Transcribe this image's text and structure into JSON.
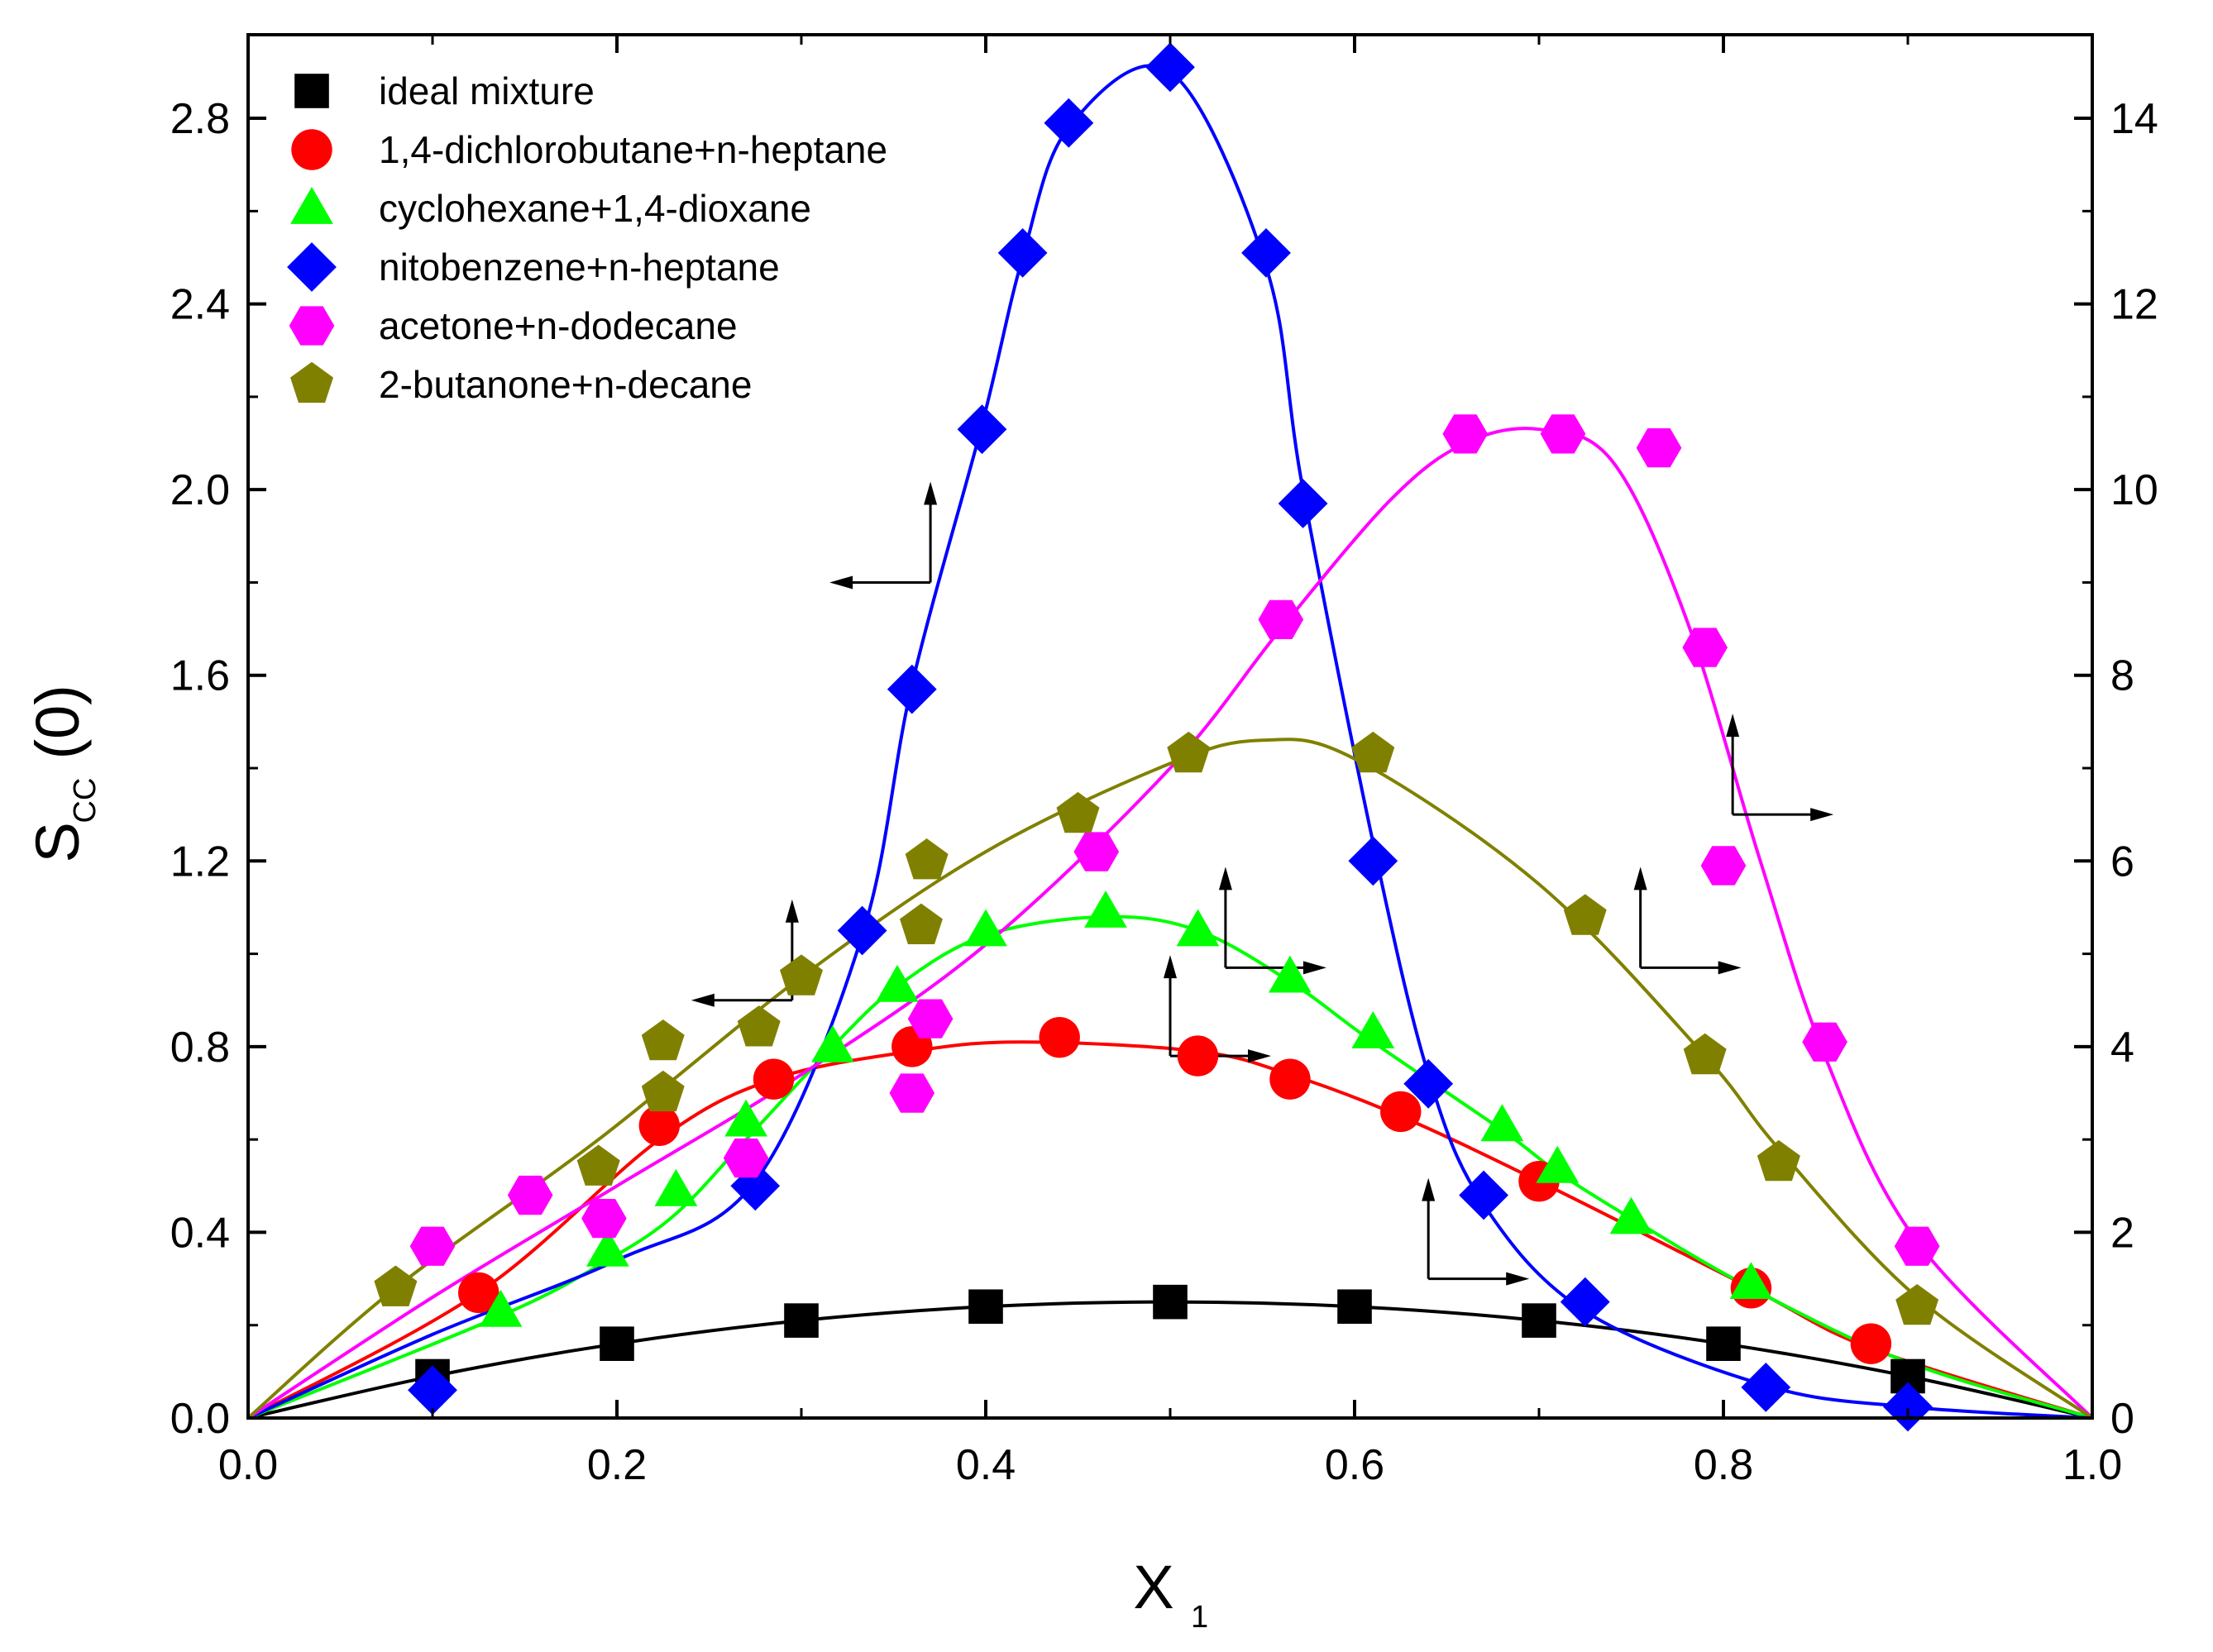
{
  "chart_data": {
    "type": "scatter",
    "title": "",
    "xlabel": "X",
    "xlabel_subscript": "1",
    "ylabel": "S",
    "ylabel_subscript": "CC",
    "ylabel_suffix": "(0)",
    "xlim": [
      0.0,
      1.0
    ],
    "ylim_left": [
      0.0,
      2.98
    ],
    "ylim_right": [
      0,
      14.9
    ],
    "x_ticks": [
      "0.0",
      "0.2",
      "0.4",
      "0.6",
      "0.8",
      "1.0"
    ],
    "y_ticks_left": [
      "0.0",
      "0.4",
      "0.8",
      "1.2",
      "1.6",
      "2.0",
      "2.4",
      "2.8"
    ],
    "y_ticks_right": [
      "0",
      "2",
      "4",
      "6",
      "8",
      "10",
      "12",
      "14"
    ],
    "legend_position": "top-left",
    "series": [
      {
        "name": "ideal mixture",
        "marker": "square",
        "color": "#000000",
        "axis": "left",
        "x": [
          0.1,
          0.2,
          0.3,
          0.4,
          0.5,
          0.6,
          0.7,
          0.8,
          0.9
        ],
        "y": [
          0.09,
          0.16,
          0.21,
          0.24,
          0.25,
          0.24,
          0.21,
          0.16,
          0.09
        ],
        "fit_x": [
          0,
          0.1,
          0.2,
          0.3,
          0.4,
          0.5,
          0.6,
          0.7,
          0.8,
          0.9,
          1.0
        ],
        "fit_y": [
          0,
          0.09,
          0.16,
          0.21,
          0.24,
          0.25,
          0.24,
          0.21,
          0.16,
          0.09,
          0
        ]
      },
      {
        "name": "1,4-dichlorobutane+n-heptane",
        "marker": "circle",
        "color": "#ff0000",
        "axis": "left",
        "x": [
          0.125,
          0.223,
          0.285,
          0.36,
          0.44,
          0.515,
          0.565,
          0.625,
          0.7,
          0.815,
          0.88
        ],
        "y": [
          0.27,
          0.63,
          0.73,
          0.8,
          0.82,
          0.78,
          0.73,
          0.66,
          0.51,
          0.28,
          0.16
        ],
        "fit_x": [
          0,
          0.125,
          0.223,
          0.285,
          0.36,
          0.42,
          0.515,
          0.565,
          0.625,
          0.7,
          0.815,
          0.88,
          1.0
        ],
        "fit_y": [
          0,
          0.27,
          0.6,
          0.73,
          0.79,
          0.81,
          0.79,
          0.74,
          0.65,
          0.51,
          0.28,
          0.15,
          0
        ]
      },
      {
        "name": "cyclohexane+1,4-dioxane",
        "marker": "triangle",
        "color": "#00ff00",
        "axis": "left",
        "x": [
          0.137,
          0.195,
          0.232,
          0.27,
          0.317,
          0.352,
          0.4,
          0.465,
          0.515,
          0.565,
          0.61,
          0.68,
          0.71,
          0.75,
          0.815
        ],
        "y": [
          0.23,
          0.36,
          0.49,
          0.64,
          0.8,
          0.93,
          1.05,
          1.09,
          1.05,
          0.95,
          0.83,
          0.63,
          0.54,
          0.43,
          0.29
        ],
        "fit_x": [
          0,
          0.137,
          0.195,
          0.232,
          0.27,
          0.317,
          0.352,
          0.4,
          0.465,
          0.515,
          0.565,
          0.61,
          0.68,
          0.71,
          0.75,
          0.815,
          0.9,
          1.0
        ],
        "fit_y": [
          0,
          0.22,
          0.34,
          0.44,
          0.6,
          0.8,
          0.93,
          1.04,
          1.08,
          1.05,
          0.94,
          0.81,
          0.62,
          0.53,
          0.43,
          0.28,
          0.12,
          0
        ]
      },
      {
        "name": "nitobenzene+n-heptane",
        "marker": "diamond",
        "color": "#0000ff",
        "axis": "right",
        "x": [
          0.1,
          0.275,
          0.333,
          0.36,
          0.398,
          0.42,
          0.445,
          0.5,
          0.552,
          0.572,
          0.61,
          0.64,
          0.67,
          0.725,
          0.823,
          0.9
        ],
        "y": [
          0.3,
          2.5,
          5.25,
          7.85,
          10.65,
          12.55,
          13.95,
          14.55,
          12.55,
          9.85,
          6.0,
          3.6,
          2.4,
          1.25,
          0.33,
          0.12
        ],
        "fit_x": [
          0,
          0.1,
          0.2,
          0.275,
          0.333,
          0.36,
          0.398,
          0.42,
          0.445,
          0.5,
          0.552,
          0.572,
          0.61,
          0.64,
          0.67,
          0.725,
          0.823,
          0.9,
          1.0
        ],
        "fit_y": [
          0,
          0.9,
          1.7,
          2.55,
          5.2,
          7.9,
          10.7,
          12.5,
          13.9,
          14.5,
          12.4,
          10.0,
          6.2,
          3.7,
          2.3,
          1.15,
          0.35,
          0.12,
          0
        ]
      },
      {
        "name": "acetone+n-dodecane",
        "marker": "hexagon",
        "color": "#ff00ff",
        "axis": "right",
        "x": [
          0.1,
          0.153,
          0.193,
          0.27,
          0.36,
          0.37,
          0.46,
          0.56,
          0.66,
          0.713,
          0.765,
          0.79,
          0.8,
          0.855,
          0.905
        ],
        "y": [
          1.85,
          2.4,
          2.15,
          2.8,
          3.5,
          4.3,
          6.1,
          8.6,
          10.6,
          10.6,
          10.45,
          8.3,
          5.95,
          4.05,
          1.85
        ],
        "fit_x": [
          0,
          0.1,
          0.2,
          0.3,
          0.4,
          0.5,
          0.56,
          0.62,
          0.66,
          0.7,
          0.74,
          0.78,
          0.82,
          0.855,
          0.905,
          1.0
        ],
        "fit_y": [
          0,
          1.3,
          2.5,
          3.7,
          5.1,
          7.0,
          8.5,
          9.9,
          10.5,
          10.65,
          10.3,
          8.6,
          6.0,
          3.9,
          1.9,
          0
        ]
      },
      {
        "name": "2-butanone+n-decane",
        "marker": "pentagon",
        "color": "#808000",
        "axis": "right",
        "x": [
          0.08,
          0.19,
          0.225,
          0.225,
          0.277,
          0.3,
          0.365,
          0.368,
          0.45,
          0.51,
          0.61,
          0.725,
          0.79,
          0.83,
          0.905
        ],
        "y": [
          1.4,
          2.7,
          3.5,
          4.05,
          4.2,
          4.75,
          5.3,
          6.0,
          6.5,
          7.15,
          7.15,
          5.4,
          3.9,
          2.75,
          1.2
        ],
        "fit_x": [
          0,
          0.08,
          0.19,
          0.3,
          0.4,
          0.5,
          0.55,
          0.6,
          0.7,
          0.79,
          0.83,
          0.905,
          1.0
        ],
        "fit_y": [
          0,
          1.4,
          3.0,
          4.75,
          6.1,
          7.05,
          7.3,
          7.1,
          5.75,
          3.9,
          2.9,
          1.3,
          0
        ]
      }
    ],
    "annotations": [
      {
        "label": "arrow pointing to left axis",
        "x": 0.37,
        "y_left": 1.8,
        "direction": "left"
      },
      {
        "label": "arrow pointing to left axis",
        "x": 0.295,
        "y_left": 0.9,
        "direction": "left"
      },
      {
        "label": "arrow pointing to right axis",
        "x": 0.53,
        "y_left": 0.97,
        "direction": "right"
      },
      {
        "label": "arrow pointing to right axis",
        "x": 0.5,
        "y_left": 0.78,
        "direction": "right"
      },
      {
        "label": "arrow pointing to right axis",
        "x": 0.805,
        "y_left": 1.3,
        "direction": "right"
      },
      {
        "label": "arrow pointing to right axis",
        "x": 0.755,
        "y_left": 0.97,
        "direction": "right"
      },
      {
        "label": "arrow pointing to right axis",
        "x": 0.64,
        "y_left": 0.3,
        "direction": "right"
      }
    ]
  }
}
